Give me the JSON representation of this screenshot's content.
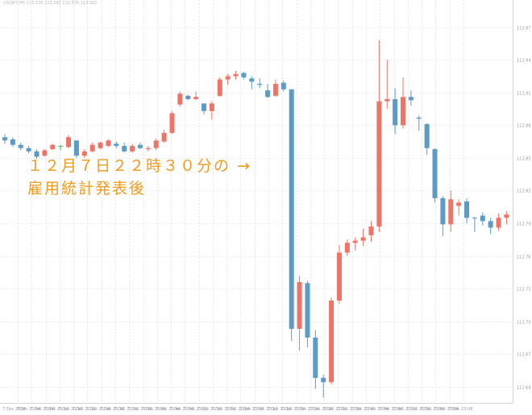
{
  "symbol_bar": {
    "text": "USDJPY,M5 113.576 113.582 113.576 113.582"
  },
  "annotation": {
    "line1": "１２月７日２２時３０分の →",
    "line2": "雇用統計発表後"
  },
  "colors": {
    "bull": "#ef7468",
    "bear": "#5b9bc6",
    "grid": "#d9d9d9",
    "doji": "#3fc454"
  },
  "chart_data": {
    "type": "candlestick",
    "y_axis": {
      "position": "right",
      "ylim": [
        112.625,
        112.995
      ],
      "tick_labels": [
        "112.97",
        "112.94",
        "112.91",
        "112.88",
        "112.85",
        "112.82",
        "112.79",
        "112.76",
        "112.73",
        "112.70",
        "112.67",
        "112.64"
      ]
    },
    "x_axis": {
      "tick_labels": [
        "7 Dec 2018",
        "7 Dec 21:04",
        "7 Dec 21:08",
        "7 Dec 21:12",
        "7 Dec 21:16",
        "7 Dec 21:20",
        "7 Dec 21:24",
        "7 Dec 21:28",
        "7 Dec 21:32",
        "7 Dec 21:36",
        "7 Dec 21:40",
        "7 Dec 21:44",
        "7 Dec 21:48",
        "7 Dec 21:52",
        "7 Dec 21:56",
        "7 Dec 22:00",
        "7 Dec 22:04",
        "7 Dec 22:08",
        "7 Dec 22:12",
        "7 Dec 22:16",
        "7 Dec 22:20",
        "7 Dec 22:24",
        "7 Dec 22:28",
        "7 Dec 22:32",
        "7 Dec 22:36",
        "7 Dec 22:40",
        "7 Dec 22:44",
        "7 Dec 22:48",
        "7 Dec 22:52",
        "7 Dec 22:56",
        "7 Dec 23:00",
        "7 Dec 23:04",
        "7 Dec 23:08"
      ]
    },
    "grid": true,
    "candles": [
      {
        "o": 112.869,
        "h": 112.872,
        "l": 112.863,
        "c": 112.866
      },
      {
        "o": 112.867,
        "h": 112.869,
        "l": 112.86,
        "c": 112.862
      },
      {
        "o": 112.862,
        "h": 112.864,
        "l": 112.857,
        "c": 112.859
      },
      {
        "o": 112.859,
        "h": 112.861,
        "l": 112.854,
        "c": 112.856
      },
      {
        "o": 112.856,
        "h": 112.858,
        "l": 112.849,
        "c": 112.851
      },
      {
        "o": 112.852,
        "h": 112.858,
        "l": 112.851,
        "c": 112.857
      },
      {
        "o": 112.858,
        "h": 112.863,
        "l": 112.857,
        "c": 112.862
      },
      {
        "o": 112.861,
        "h": 112.862,
        "l": 112.857,
        "c": 112.861
      },
      {
        "o": 112.86,
        "h": 112.871,
        "l": 112.859,
        "c": 112.869
      },
      {
        "o": 112.866,
        "h": 112.866,
        "l": 112.85,
        "c": 112.852
      },
      {
        "o": 112.852,
        "h": 112.858,
        "l": 112.85,
        "c": 112.856
      },
      {
        "o": 112.856,
        "h": 112.864,
        "l": 112.855,
        "c": 112.862
      },
      {
        "o": 112.859,
        "h": 112.865,
        "l": 112.858,
        "c": 112.864
      },
      {
        "o": 112.861,
        "h": 112.867,
        "l": 112.86,
        "c": 112.866
      },
      {
        "o": 112.863,
        "h": 112.865,
        "l": 112.859,
        "c": 112.861
      },
      {
        "o": 112.861,
        "h": 112.864,
        "l": 112.855,
        "c": 112.856
      },
      {
        "o": 112.856,
        "h": 112.863,
        "l": 112.855,
        "c": 112.861
      },
      {
        "o": 112.862,
        "h": 112.864,
        "l": 112.858,
        "c": 112.859
      },
      {
        "o": 112.858,
        "h": 112.861,
        "l": 112.856,
        "c": 112.859
      },
      {
        "o": 112.859,
        "h": 112.868,
        "l": 112.857,
        "c": 112.866
      },
      {
        "o": 112.865,
        "h": 112.876,
        "l": 112.864,
        "c": 112.873
      },
      {
        "o": 112.873,
        "h": 112.893,
        "l": 112.872,
        "c": 112.891
      },
      {
        "o": 112.899,
        "h": 112.911,
        "l": 112.897,
        "c": 112.909
      },
      {
        "o": 112.907,
        "h": 112.908,
        "l": 112.903,
        "c": 112.904
      },
      {
        "o": 112.904,
        "h": 112.911,
        "l": 112.903,
        "c": 112.906
      },
      {
        "o": 112.9,
        "h": 112.9,
        "l": 112.89,
        "c": 112.893
      },
      {
        "o": 112.893,
        "h": 112.902,
        "l": 112.885,
        "c": 112.9
      },
      {
        "o": 112.907,
        "h": 112.924,
        "l": 112.906,
        "c": 112.922
      },
      {
        "o": 112.922,
        "h": 112.927,
        "l": 112.917,
        "c": 112.925
      },
      {
        "o": 112.925,
        "h": 112.93,
        "l": 112.922,
        "c": 112.927
      },
      {
        "o": 112.928,
        "h": 112.929,
        "l": 112.922,
        "c": 112.924
      },
      {
        "o": 112.923,
        "h": 112.925,
        "l": 112.913,
        "c": 112.92
      },
      {
        "o": 112.918,
        "h": 112.923,
        "l": 112.914,
        "c": 112.917
      },
      {
        "o": 112.912,
        "h": 112.918,
        "l": 112.905,
        "c": 112.906
      },
      {
        "o": 112.907,
        "h": 112.922,
        "l": 112.906,
        "c": 112.918
      },
      {
        "o": 112.919,
        "h": 112.921,
        "l": 112.911,
        "c": 112.913
      },
      {
        "o": 112.913,
        "h": 112.913,
        "l": 112.682,
        "c": 112.693
      },
      {
        "o": 112.693,
        "h": 112.742,
        "l": 112.673,
        "c": 112.736
      },
      {
        "o": 112.735,
        "h": 112.737,
        "l": 112.676,
        "c": 112.685
      },
      {
        "o": 112.685,
        "h": 112.692,
        "l": 112.638,
        "c": 112.648
      },
      {
        "o": 112.648,
        "h": 112.651,
        "l": 112.63,
        "c": 112.644
      },
      {
        "o": 112.644,
        "h": 112.722,
        "l": 112.642,
        "c": 112.719
      },
      {
        "o": 112.719,
        "h": 112.77,
        "l": 112.716,
        "c": 112.763
      },
      {
        "o": 112.763,
        "h": 112.775,
        "l": 112.76,
        "c": 112.772
      },
      {
        "o": 112.772,
        "h": 112.777,
        "l": 112.765,
        "c": 112.774
      },
      {
        "o": 112.774,
        "h": 112.785,
        "l": 112.769,
        "c": 112.777
      },
      {
        "o": 112.779,
        "h": 112.792,
        "l": 112.773,
        "c": 112.787
      },
      {
        "o": 112.787,
        "h": 112.958,
        "l": 112.782,
        "c": 112.902
      },
      {
        "o": 112.902,
        "h": 112.94,
        "l": 112.895,
        "c": 112.904
      },
      {
        "o": 112.904,
        "h": 112.914,
        "l": 112.872,
        "c": 112.88
      },
      {
        "o": 112.88,
        "h": 112.924,
        "l": 112.877,
        "c": 112.906
      },
      {
        "o": 112.906,
        "h": 112.912,
        "l": 112.898,
        "c": 112.903
      },
      {
        "o": 112.887,
        "h": 112.889,
        "l": 112.875,
        "c": 112.886
      },
      {
        "o": 112.881,
        "h": 112.882,
        "l": 112.853,
        "c": 112.859
      },
      {
        "o": 112.858,
        "h": 112.859,
        "l": 112.809,
        "c": 112.813
      },
      {
        "o": 112.813,
        "h": 112.815,
        "l": 112.778,
        "c": 112.789
      },
      {
        "o": 112.789,
        "h": 112.82,
        "l": 112.782,
        "c": 112.812
      },
      {
        "o": 112.806,
        "h": 112.812,
        "l": 112.797,
        "c": 112.809
      },
      {
        "o": 112.81,
        "h": 112.813,
        "l": 112.79,
        "c": 112.795
      },
      {
        "o": 112.795,
        "h": 112.796,
        "l": 112.782,
        "c": 112.795
      },
      {
        "o": 112.797,
        "h": 112.8,
        "l": 112.788,
        "c": 112.792
      },
      {
        "o": 112.792,
        "h": 112.795,
        "l": 112.78,
        "c": 112.786
      },
      {
        "o": 112.786,
        "h": 112.799,
        "l": 112.783,
        "c": 112.795
      },
      {
        "o": 112.795,
        "h": 112.801,
        "l": 112.789,
        "c": 112.798
      }
    ]
  }
}
